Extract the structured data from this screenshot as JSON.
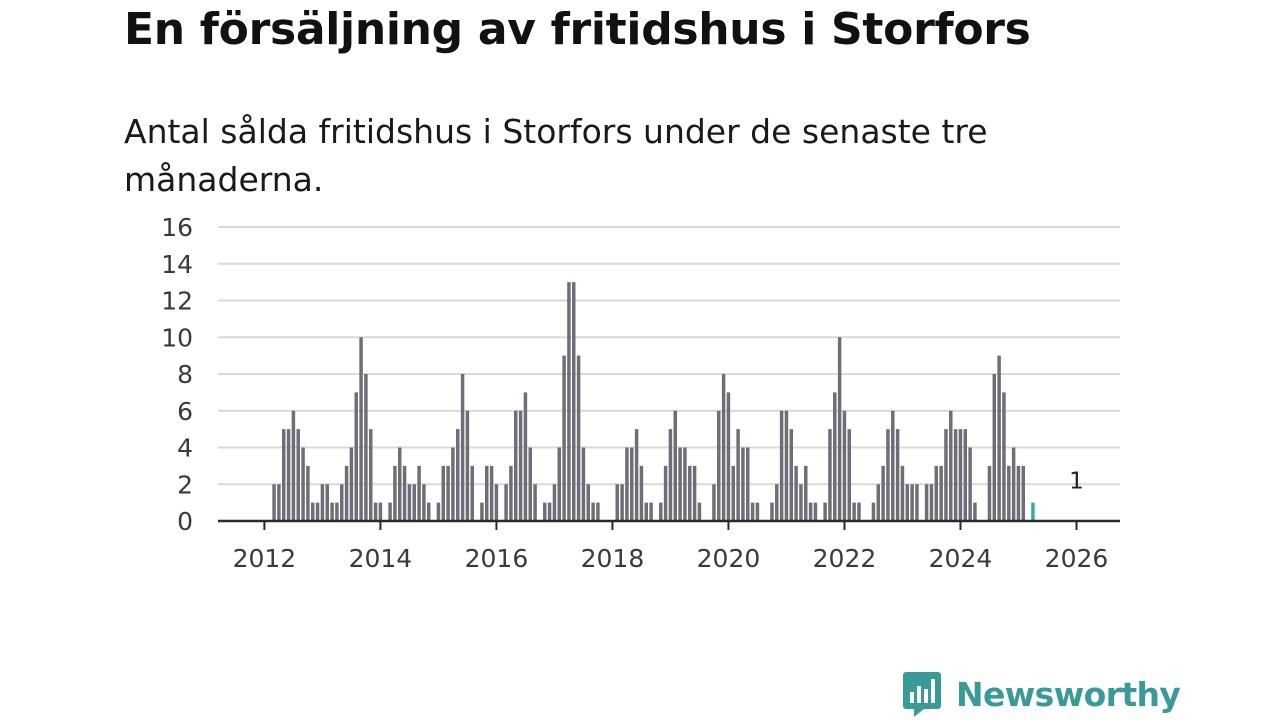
{
  "title": "En försäljning av fritidshus i Storfors",
  "subtitle": "Antal sålda fritidshus i Storfors under de senaste tre månaderna.",
  "brand": {
    "name": "Newsworthy",
    "color": "#3a9a98",
    "icon": "newsworthy-logo-icon"
  },
  "colors": {
    "bar": "#6f6e78",
    "highlight": "#3aa9a4",
    "grid": "#d9d9d9",
    "axis": "#2a2a2a",
    "text": "#3a3a3a"
  },
  "chart_data": {
    "type": "bar",
    "title": "En försäljning av fritidshus i Storfors",
    "subtitle": "Antal sålda fritidshus i Storfors under de senaste tre månaderna.",
    "xlabel": "",
    "ylabel": "",
    "ylim": [
      0,
      16
    ],
    "yticks": [
      0,
      2,
      4,
      6,
      8,
      10,
      12,
      14,
      16
    ],
    "xlim": [
      2011.2,
      2026.75
    ],
    "xticks": [
      2012,
      2014,
      2016,
      2018,
      2020,
      2022,
      2024,
      2026
    ],
    "grid": true,
    "x_start": 2012.0,
    "x_step": 0.08333,
    "series": [
      {
        "name": "Antal sålda fritidshus",
        "values": [
          0,
          0,
          2,
          2,
          5,
          5,
          6,
          5,
          4,
          3,
          1,
          1,
          2,
          2,
          1,
          1,
          2,
          3,
          4,
          7,
          10,
          8,
          5,
          1,
          1,
          0,
          1,
          3,
          4,
          3,
          2,
          2,
          3,
          2,
          1,
          0,
          1,
          3,
          3,
          4,
          5,
          8,
          6,
          3,
          0,
          1,
          3,
          3,
          2,
          0,
          2,
          3,
          6,
          6,
          7,
          4,
          2,
          0,
          1,
          1,
          2,
          4,
          9,
          13,
          13,
          9,
          4,
          2,
          1,
          1,
          0,
          0,
          0,
          2,
          2,
          4,
          4,
          5,
          3,
          1,
          1,
          0,
          1,
          3,
          5,
          6,
          4,
          4,
          3,
          3,
          1,
          0,
          0,
          2,
          6,
          8,
          7,
          3,
          5,
          4,
          4,
          1,
          1,
          0,
          0,
          1,
          2,
          6,
          6,
          5,
          3,
          2,
          3,
          1,
          1,
          0,
          1,
          5,
          7,
          10,
          6,
          5,
          1,
          1,
          0,
          0,
          1,
          2,
          3,
          5,
          6,
          5,
          3,
          2,
          2,
          2,
          0,
          2,
          2,
          3,
          3,
          5,
          6,
          5,
          5,
          5,
          4,
          1,
          0,
          0,
          3,
          8,
          9,
          7,
          3,
          4,
          3,
          3,
          0,
          1
        ]
      }
    ],
    "annotations": [
      {
        "label": "1",
        "x": 2026.0,
        "y": 1,
        "highlight": true
      }
    ]
  }
}
